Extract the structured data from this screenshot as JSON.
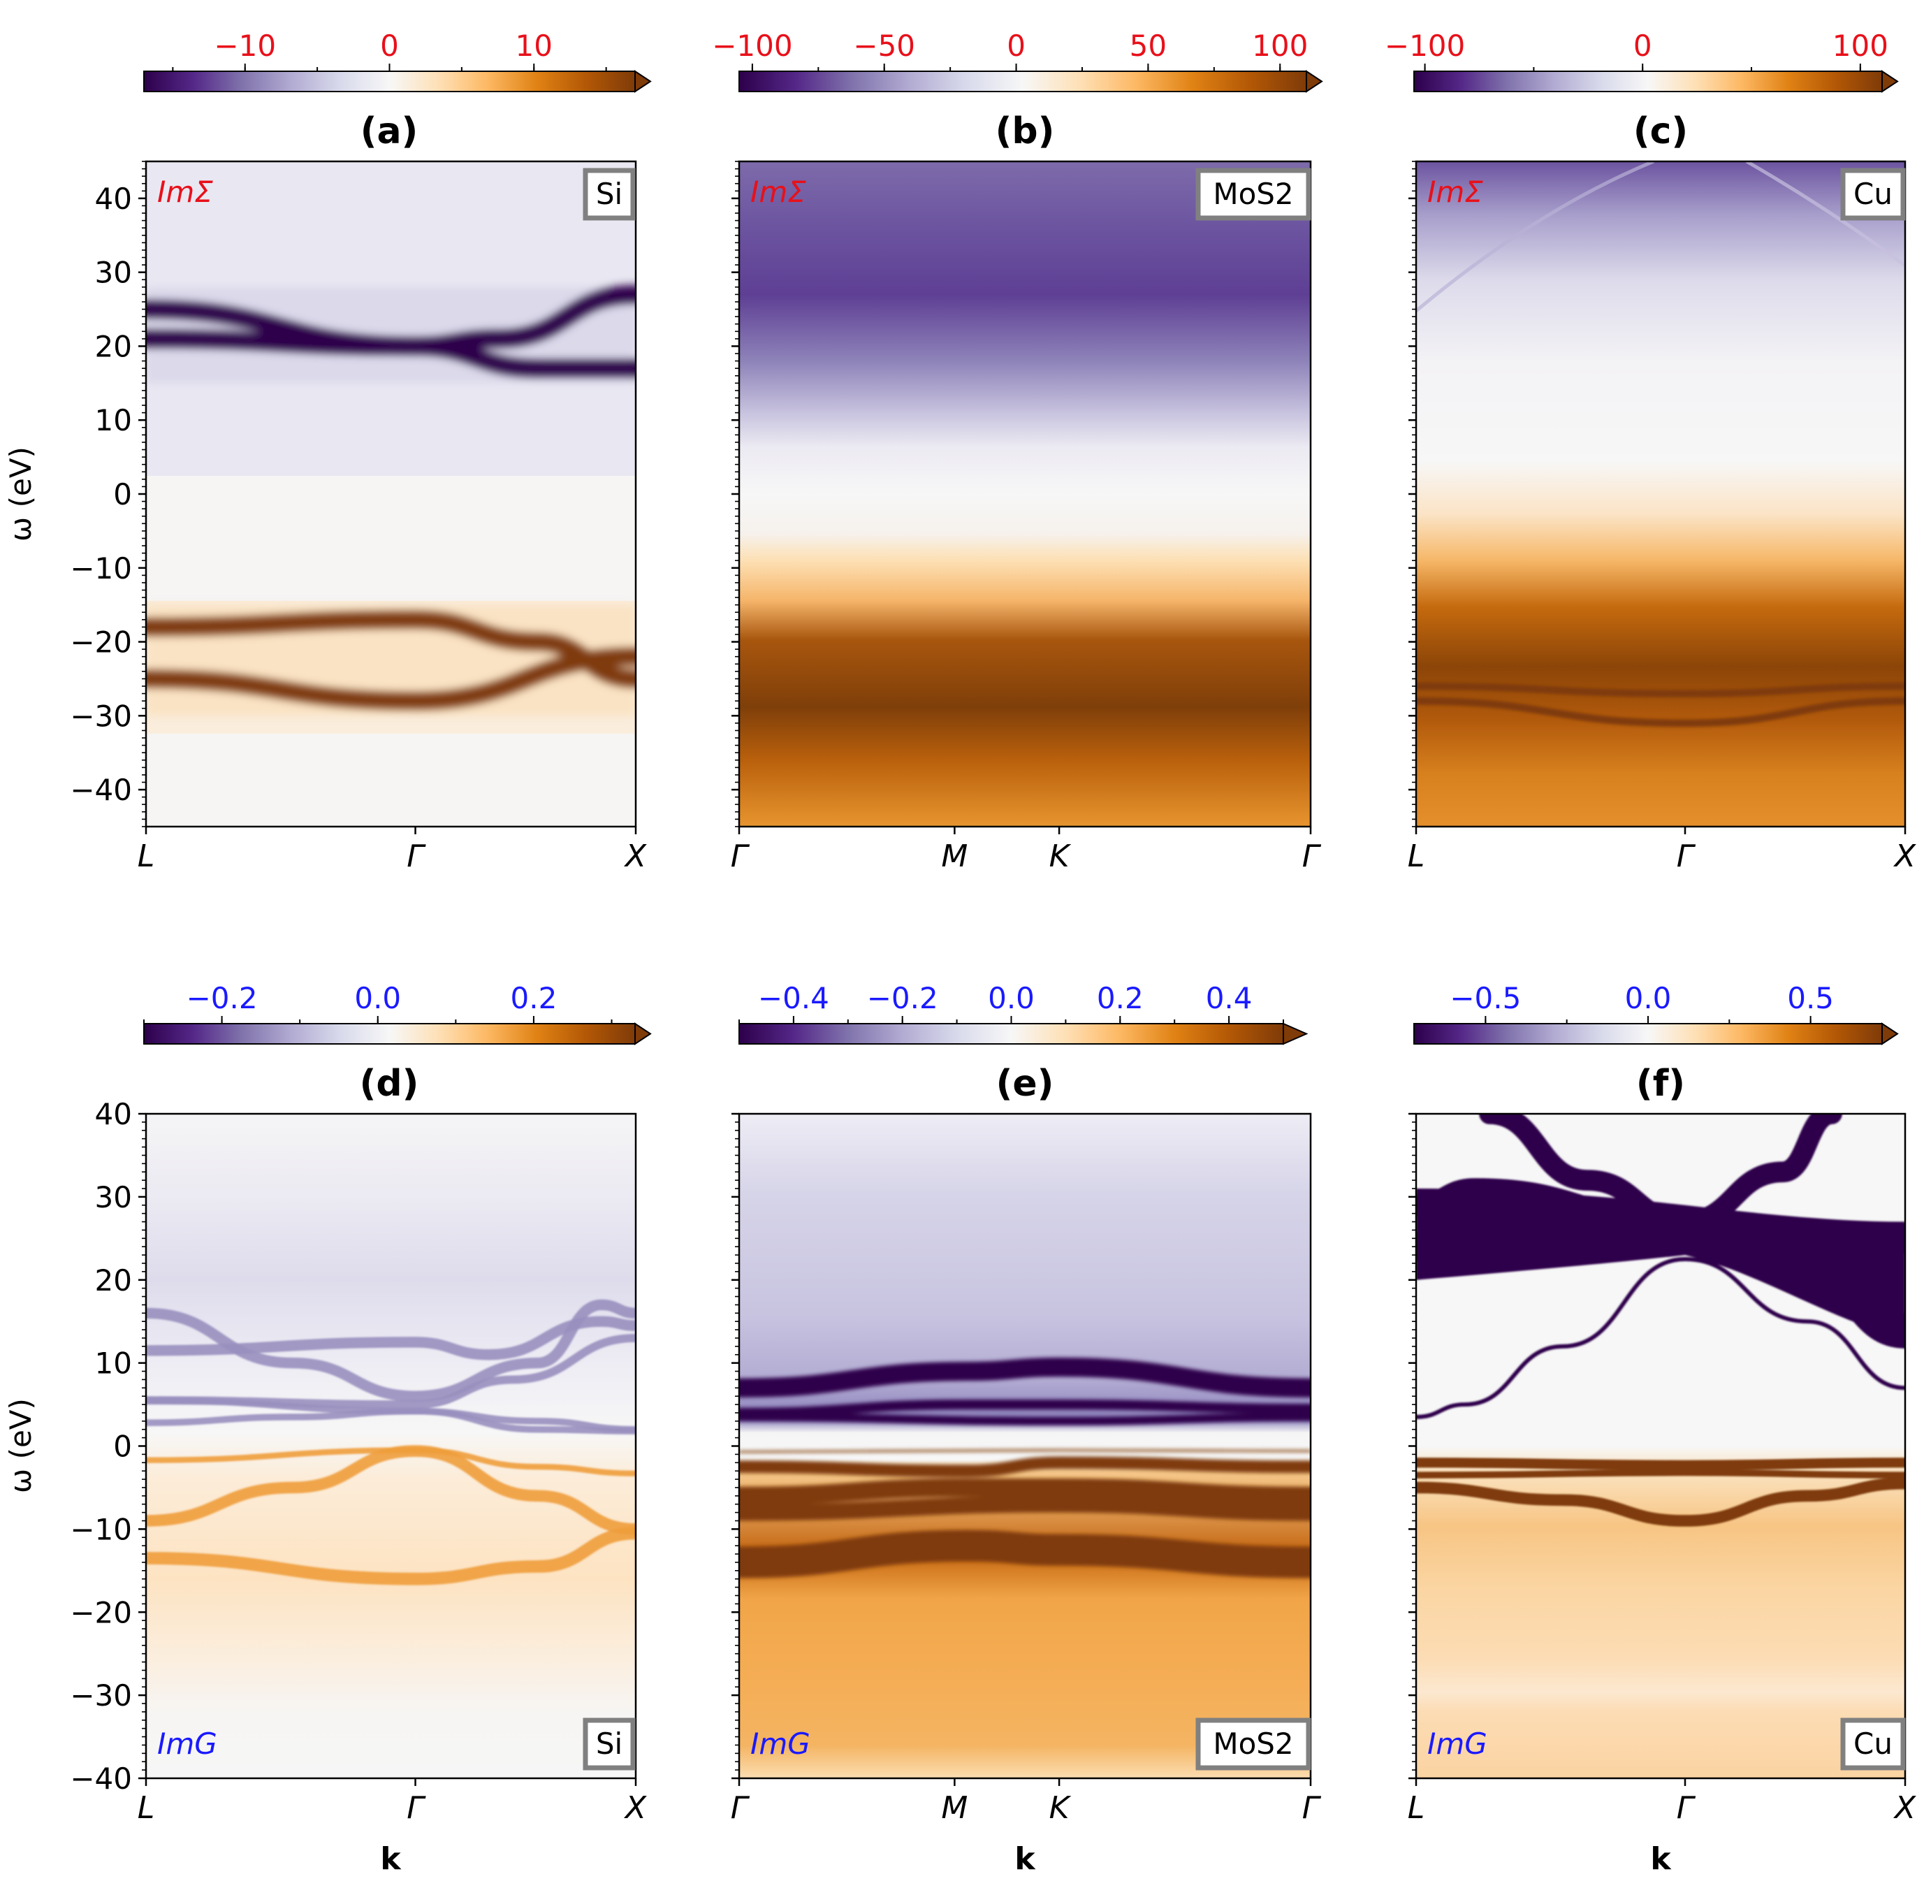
{
  "figure": {
    "ylabel": "ω (eV)",
    "xlabel": "k"
  },
  "colors": {
    "red_label": "#e8101a",
    "blue_label": "#1a1aff",
    "axis": "#000000",
    "cmap_low": "#2d004b",
    "cmap_mid": "#f7f7f7",
    "cmap_high": "#7f3b08"
  },
  "chart_data": [
    {
      "id": "a",
      "title": "(a)",
      "quantity": "ImΣ",
      "material": "Si",
      "type": "heatmap",
      "colorbar": {
        "ticks": [
          -10,
          0,
          10
        ],
        "tick_labels": [
          "−10",
          "0",
          "10"
        ],
        "range": [
          -17,
          17
        ],
        "extend": "max",
        "label_color": "red"
      },
      "ylim": [
        -45,
        45
      ],
      "yticks": [
        -40,
        -30,
        -20,
        -10,
        0,
        10,
        20,
        30,
        40
      ],
      "ytick_labels": [
        "−40",
        "−30",
        "−20",
        "−10",
        "0",
        "10",
        "20",
        "30",
        "40"
      ],
      "kpath": [
        {
          "label": "L",
          "pos": 0
        },
        {
          "label": "Γ",
          "pos": 0.55
        },
        {
          "label": "X",
          "pos": 1
        }
      ],
      "bands": [
        {
          "value": -9,
          "width": 2.5,
          "points": [
            [
              0,
              21
            ],
            [
              0.55,
              20
            ],
            [
              0.72,
              21
            ],
            [
              1,
              27
            ]
          ]
        },
        {
          "value": -7,
          "width": 2.5,
          "points": [
            [
              0,
              25
            ],
            [
              0.55,
              20
            ],
            [
              0.8,
              17
            ],
            [
              1,
              17
            ]
          ]
        },
        {
          "value": 5,
          "width": 2.5,
          "points": [
            [
              0,
              -18
            ],
            [
              0.55,
              -17
            ],
            [
              0.8,
              -20
            ],
            [
              1,
              -25
            ]
          ]
        },
        {
          "value": 5,
          "width": 2.5,
          "points": [
            [
              0,
              -25
            ],
            [
              0.55,
              -28
            ],
            [
              1,
              -22
            ]
          ]
        }
      ]
    },
    {
      "id": "b",
      "title": "(b)",
      "quantity": "ImΣ",
      "material": "MoS2",
      "type": "heatmap",
      "colorbar": {
        "ticks": [
          -100,
          -50,
          0,
          50,
          100
        ],
        "tick_labels": [
          "−100",
          "−50",
          "0",
          "50",
          "100"
        ],
        "range": [
          -105,
          110
        ],
        "extend": "max",
        "label_color": "red"
      },
      "ylim": [
        -45,
        45
      ],
      "kpath": [
        {
          "label": "Γ",
          "pos": 0
        },
        {
          "label": "M",
          "pos": 0.377
        },
        {
          "label": "K",
          "pos": 0.56
        },
        {
          "label": "Γ",
          "pos": 1
        }
      ],
      "bands": []
    },
    {
      "id": "c",
      "title": "(c)",
      "quantity": "ImΣ",
      "material": "Cu",
      "type": "heatmap",
      "colorbar": {
        "ticks": [
          -100,
          0,
          100
        ],
        "tick_labels": [
          "−100",
          "0",
          "100"
        ],
        "range": [
          -105,
          110
        ],
        "extend": "max",
        "label_color": "red"
      },
      "ylim": [
        -45,
        45
      ],
      "kpath": [
        {
          "label": "L",
          "pos": 0
        },
        {
          "label": "Γ",
          "pos": 0.55
        },
        {
          "label": "X",
          "pos": 1
        }
      ],
      "bands": [
        {
          "value": 90,
          "width": 1,
          "points": [
            [
              0,
              -26
            ],
            [
              0.55,
              -27
            ],
            [
              1,
              -26
            ]
          ]
        },
        {
          "value": 80,
          "width": 1,
          "points": [
            [
              0,
              -28
            ],
            [
              0.55,
              -31
            ],
            [
              1,
              -28
            ]
          ]
        }
      ]
    },
    {
      "id": "d",
      "title": "(d)",
      "quantity": "ImG",
      "material": "Si",
      "type": "heatmap",
      "colorbar": {
        "ticks": [
          -0.2,
          0.0,
          0.2
        ],
        "tick_labels": [
          "−0.2",
          "0.0",
          "0.2"
        ],
        "range": [
          -0.3,
          0.33
        ],
        "extend": "max",
        "label_color": "blue"
      },
      "ylim": [
        -40,
        40
      ],
      "yticks": [
        -40,
        -30,
        -20,
        -10,
        0,
        10,
        20,
        30,
        40
      ],
      "ytick_labels": [
        "−40",
        "−30",
        "−20",
        "−10",
        "0",
        "10",
        "20",
        "30",
        "40"
      ],
      "kpath": [
        {
          "label": "L",
          "pos": 0
        },
        {
          "label": "Γ",
          "pos": 0.55
        },
        {
          "label": "X",
          "pos": 1
        }
      ],
      "bands": [
        {
          "value": -0.5,
          "width": 1.3,
          "points": [
            [
              0,
              16
            ],
            [
              0.3,
              10
            ],
            [
              0.55,
              6
            ],
            [
              0.8,
              10
            ],
            [
              0.93,
              17
            ],
            [
              1,
              16
            ]
          ]
        },
        {
          "value": -0.5,
          "width": 1.3,
          "points": [
            [
              0,
              11.5
            ],
            [
              0.55,
              12.5
            ],
            [
              0.7,
              11
            ],
            [
              0.93,
              15
            ],
            [
              1,
              14.5
            ]
          ]
        },
        {
          "value": -0.5,
          "width": 1,
          "points": [
            [
              0,
              5.5
            ],
            [
              0.55,
              5
            ],
            [
              0.75,
              8
            ],
            [
              1,
              13
            ]
          ]
        },
        {
          "value": -0.5,
          "width": 0.8,
          "points": [
            [
              0,
              2.8
            ],
            [
              0.3,
              3.5
            ],
            [
              0.55,
              4.2
            ],
            [
              0.8,
              3
            ],
            [
              1,
              2
            ]
          ]
        },
        {
          "value": -0.5,
          "width": 0.8,
          "points": [
            [
              0,
              5.5
            ],
            [
              0.55,
              4.2
            ],
            [
              0.8,
              2
            ],
            [
              1,
              1.8
            ]
          ]
        },
        {
          "value": 0.5,
          "width": 0.7,
          "points": [
            [
              0,
              -1.7
            ],
            [
              0.55,
              -0.5
            ],
            [
              0.8,
              -2.5
            ],
            [
              1,
              -3.3
            ]
          ]
        },
        {
          "value": 0.5,
          "width": 1.4,
          "points": [
            [
              0,
              -9
            ],
            [
              0.3,
              -5
            ],
            [
              0.55,
              -0.6
            ],
            [
              0.8,
              -6
            ],
            [
              1,
              -10
            ]
          ]
        },
        {
          "value": 0.5,
          "width": 1.5,
          "points": [
            [
              0,
              -13.5
            ],
            [
              0.55,
              -16
            ],
            [
              0.8,
              -14.5
            ],
            [
              1,
              -10.5
            ]
          ]
        }
      ]
    },
    {
      "id": "e",
      "title": "(e)",
      "quantity": "ImG",
      "material": "MoS2",
      "type": "heatmap",
      "colorbar": {
        "ticks": [
          -0.4,
          -0.2,
          0.0,
          0.2,
          0.4
        ],
        "tick_labels": [
          "−0.4",
          "−0.2",
          "0.0",
          "0.2",
          "0.4"
        ],
        "range": [
          -0.5,
          0.5
        ],
        "extend": "max",
        "label_color": "blue"
      },
      "ylim": [
        -40,
        40
      ],
      "kpath": [
        {
          "label": "Γ",
          "pos": 0
        },
        {
          "label": "M",
          "pos": 0.377
        },
        {
          "label": "K",
          "pos": 0.56
        },
        {
          "label": "Γ",
          "pos": 1
        }
      ],
      "bands": [
        {
          "value": -1,
          "width": 2.3,
          "points": [
            [
              0,
              7
            ],
            [
              0.4,
              9
            ],
            [
              0.56,
              9.5
            ],
            [
              1,
              7
            ]
          ]
        },
        {
          "value": -1,
          "width": 1.2,
          "points": [
            [
              0,
              4
            ],
            [
              0.4,
              5
            ],
            [
              0.56,
              5
            ],
            [
              1,
              4.5
            ]
          ]
        },
        {
          "value": -1,
          "width": 1,
          "points": [
            [
              0,
              3.5
            ],
            [
              0.56,
              3
            ],
            [
              1,
              3.5
            ]
          ]
        },
        {
          "value": 1,
          "width": 0.25,
          "points": [
            [
              0,
              -0.7
            ],
            [
              0.56,
              -0.5
            ],
            [
              1,
              -0.6
            ]
          ]
        },
        {
          "value": 1,
          "width": 1.5,
          "points": [
            [
              0,
              -2.5
            ],
            [
              0.4,
              -3
            ],
            [
              0.56,
              -2
            ],
            [
              1,
              -2.5
            ]
          ]
        },
        {
          "value": 1,
          "width": 2.2,
          "points": [
            [
              0,
              -6
            ],
            [
              0.4,
              -5
            ],
            [
              0.56,
              -5
            ],
            [
              1,
              -6
            ]
          ]
        },
        {
          "value": 1,
          "width": 2,
          "points": [
            [
              0,
              -8
            ],
            [
              0.56,
              -7
            ],
            [
              1,
              -8
            ]
          ]
        },
        {
          "value": 1,
          "width": 3.8,
          "points": [
            [
              0,
              -14
            ],
            [
              0.4,
              -12
            ],
            [
              0.56,
              -12.5
            ],
            [
              1,
              -14
            ]
          ]
        }
      ]
    },
    {
      "id": "f",
      "title": "(f)",
      "quantity": "ImG",
      "material": "Cu",
      "type": "heatmap",
      "colorbar": {
        "ticks": [
          -0.5,
          0.0,
          0.5
        ],
        "tick_labels": [
          "−0.5",
          "0.0",
          "0.5"
        ],
        "range": [
          -0.72,
          0.72
        ],
        "extend": "max",
        "label_color": "blue"
      },
      "ylim": [
        -40,
        40
      ],
      "kpath": [
        {
          "label": "L",
          "pos": 0
        },
        {
          "label": "Γ",
          "pos": 0.55
        },
        {
          "label": "X",
          "pos": 1
        }
      ],
      "bands": [
        {
          "value": -1,
          "width": 3.5,
          "points": [
            [
              0,
              24
            ],
            [
              0.25,
              24
            ],
            [
              0.55,
              27
            ],
            [
              0.8,
              25
            ],
            [
              1,
              25
            ]
          ]
        },
        {
          "value": -1,
          "width": 2.5,
          "points": [
            [
              0,
              29
            ],
            [
              0.12,
              31
            ],
            [
              0.55,
              27
            ],
            [
              0.75,
              33
            ],
            [
              0.85,
              40
            ]
          ]
        },
        {
          "value": -1,
          "width": 2.5,
          "points": [
            [
              0.15,
              40
            ],
            [
              0.35,
              32
            ],
            [
              0.55,
              27
            ],
            [
              0.8,
              20
            ],
            [
              1,
              13
            ]
          ]
        },
        {
          "value": -1,
          "width": 2,
          "points": [
            [
              0.55,
              26
            ],
            [
              0.75,
              22
            ],
            [
              0.9,
              17
            ],
            [
              1,
              15
            ]
          ]
        },
        {
          "value": -1,
          "width": 0.5,
          "points": [
            [
              0,
              3.5
            ],
            [
              0.1,
              5
            ],
            [
              0.3,
              12
            ],
            [
              0.55,
              22.5
            ],
            [
              0.8,
              15
            ],
            [
              1,
              7
            ]
          ]
        },
        {
          "value": 1,
          "width": 1.2,
          "points": [
            [
              0,
              -2
            ],
            [
              0.55,
              -2.3
            ],
            [
              1,
              -2
            ]
          ]
        },
        {
          "value": 1,
          "width": 1.4,
          "points": [
            [
              0,
              -5
            ],
            [
              0.3,
              -6.5
            ],
            [
              0.55,
              -9
            ],
            [
              0.8,
              -6
            ],
            [
              1,
              -4.5
            ]
          ]
        },
        {
          "value": 1,
          "width": 0.8,
          "points": [
            [
              0,
              -3.5
            ],
            [
              0.55,
              -3.2
            ],
            [
              1,
              -3.5
            ]
          ]
        }
      ]
    }
  ]
}
